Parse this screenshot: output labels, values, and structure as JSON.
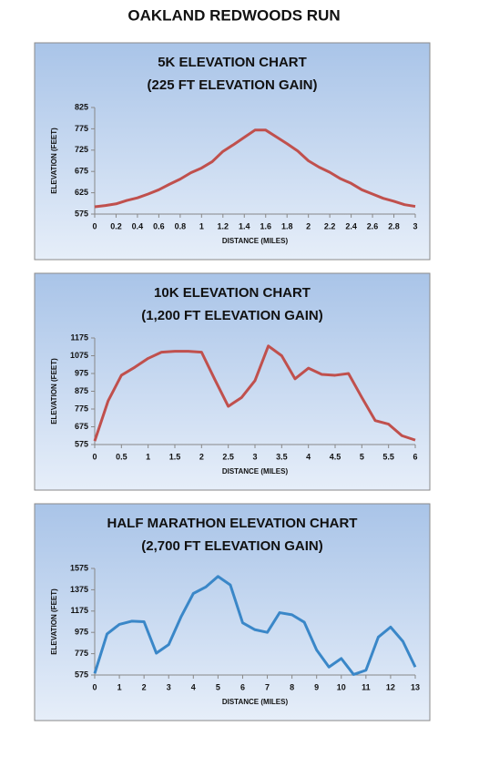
{
  "title": "OAKLAND REDWOODS RUN",
  "chart_data": [
    {
      "type": "line",
      "title": "5K ELEVATION CHART",
      "subtitle": "(225 FT ELEVATION GAIN)",
      "x_label": "DISTANCE (MILES)",
      "y_label": "ELEVATION (FEET)",
      "color": "#c0504d",
      "x": [
        0,
        0.1,
        0.2,
        0.3,
        0.4,
        0.5,
        0.6,
        0.7,
        0.8,
        0.9,
        1,
        1.1,
        1.2,
        1.3,
        1.4,
        1.5,
        1.6,
        1.7,
        1.8,
        1.9,
        2,
        2.1,
        2.2,
        2.3,
        2.4,
        2.5,
        2.6,
        2.7,
        2.8,
        2.9,
        3
      ],
      "values": [
        592,
        595,
        599,
        607,
        613,
        622,
        632,
        645,
        657,
        672,
        683,
        698,
        722,
        738,
        755,
        772,
        772,
        756,
        740,
        723,
        700,
        685,
        673,
        658,
        647,
        632,
        622,
        612,
        605,
        597,
        593
      ],
      "xlim": [
        0,
        3
      ],
      "xticks": [
        0,
        0.2,
        0.4,
        0.6,
        0.8,
        1,
        1.2,
        1.4,
        1.6,
        1.8,
        2,
        2.2,
        2.4,
        2.6,
        2.8,
        3
      ],
      "ylim": [
        575,
        825
      ],
      "yticks": [
        575,
        625,
        675,
        725,
        775,
        825
      ]
    },
    {
      "type": "line",
      "title": "10K ELEVATION CHART",
      "subtitle": "(1,200 FT ELEVATION GAIN)",
      "x_label": "DISTANCE (MILES)",
      "y_label": "ELEVATION (FEET)",
      "color": "#c0504d",
      "x": [
        0,
        0.25,
        0.5,
        0.75,
        1,
        1.25,
        1.5,
        1.75,
        2,
        2.25,
        2.5,
        2.75,
        3,
        3.25,
        3.5,
        3.75,
        4,
        4.25,
        4.5,
        4.75,
        5,
        5.25,
        5.5,
        5.75,
        6
      ],
      "values": [
        595,
        820,
        965,
        1010,
        1060,
        1095,
        1100,
        1100,
        1095,
        940,
        790,
        840,
        935,
        1130,
        1075,
        945,
        1005,
        970,
        965,
        975,
        840,
        710,
        690,
        625,
        600
      ],
      "xlim": [
        0,
        6
      ],
      "xticks": [
        0,
        0.5,
        1,
        1.5,
        2,
        2.5,
        3,
        3.5,
        4,
        4.5,
        5,
        5.5,
        6
      ],
      "ylim": [
        575,
        1175
      ],
      "yticks": [
        575,
        675,
        775,
        875,
        975,
        1075,
        1175
      ]
    },
    {
      "type": "line",
      "title": "HALF MARATHON ELEVATION CHART",
      "subtitle": "(2,700 FT ELEVATION GAIN)",
      "x_label": "DISTANCE (MILES)",
      "y_label": "ELEVATION (FEET)",
      "color": "#3a87c8",
      "x": [
        0,
        0.5,
        1,
        1.5,
        2,
        2.5,
        3,
        3.5,
        4,
        4.5,
        5,
        5.5,
        6,
        6.5,
        7,
        7.5,
        8,
        8.5,
        9,
        9.5,
        10,
        10.5,
        11,
        11.5,
        12,
        12.5,
        13
      ],
      "values": [
        590,
        960,
        1050,
        1080,
        1075,
        780,
        860,
        1120,
        1340,
        1400,
        1500,
        1420,
        1065,
        1000,
        975,
        1160,
        1140,
        1070,
        810,
        650,
        730,
        580,
        620,
        930,
        1025,
        890,
        650
      ],
      "xlim": [
        0,
        13
      ],
      "xticks": [
        0,
        1,
        2,
        3,
        4,
        5,
        6,
        7,
        8,
        9,
        10,
        11,
        12,
        13
      ],
      "ylim": [
        575,
        1575
      ],
      "yticks": [
        575,
        775,
        975,
        1175,
        1375,
        1575
      ]
    }
  ]
}
